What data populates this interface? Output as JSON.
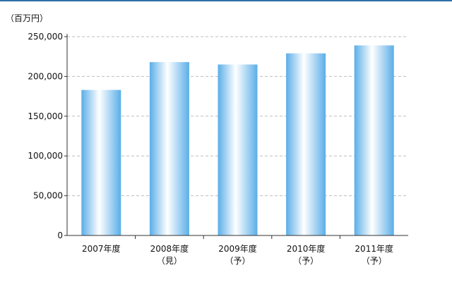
{
  "chart_data": {
    "type": "bar",
    "unit_label": "（百万円）",
    "categories": [
      {
        "line1": "2007年度",
        "line2": ""
      },
      {
        "line1": "2008年度",
        "line2": "（見）"
      },
      {
        "line1": "2009年度",
        "line2": "（予）"
      },
      {
        "line1": "2010年度",
        "line2": "（予）"
      },
      {
        "line1": "2011年度",
        "line2": "（予）"
      }
    ],
    "values": [
      183000,
      218000,
      215000,
      229000,
      239000
    ],
    "ylim": [
      0,
      250000
    ],
    "yticks": [
      0,
      50000,
      100000,
      150000,
      200000,
      250000
    ],
    "ytick_labels": [
      "0",
      "50,000",
      "100,000",
      "150,000",
      "200,000",
      "250,000"
    ],
    "grid": true,
    "colors": {
      "bar_edge": "#5aaee8",
      "bar_center": "#ffffff",
      "grid": "#bdbdbd",
      "axis": "#333333",
      "border": "#2f6fa8"
    }
  }
}
